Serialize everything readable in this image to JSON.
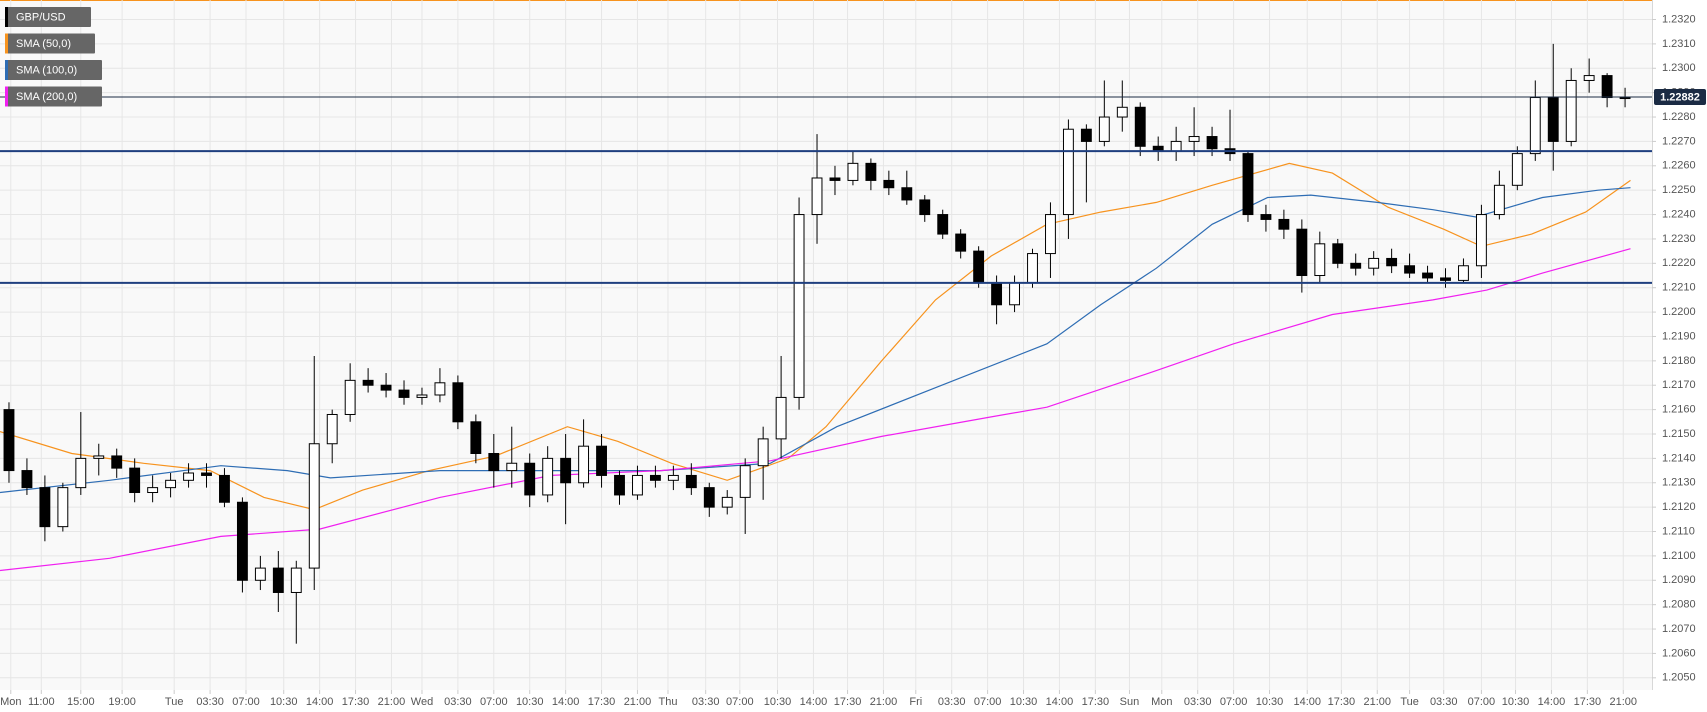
{
  "chart_data": {
    "type": "candlestick",
    "name": "GBP/USD",
    "color_up": "#ffffff",
    "color_down": "#000000",
    "categories": [
      null,
      null,
      null,
      null,
      null,
      null,
      null,
      null,
      null,
      null,
      null,
      null,
      null,
      null,
      null,
      null,
      null,
      null,
      null,
      null,
      null,
      null,
      null,
      null,
      null,
      null,
      null,
      null,
      null,
      null,
      null,
      null,
      null,
      null,
      null,
      null,
      null,
      null,
      null,
      null,
      null,
      null,
      null,
      null,
      null,
      null,
      null,
      null,
      null,
      null,
      null,
      null,
      null,
      null,
      null,
      null,
      null,
      null,
      null,
      null,
      null,
      null,
      null,
      null,
      null,
      null,
      null,
      null,
      null,
      null,
      null,
      null,
      null,
      null,
      null,
      null,
      null,
      null,
      null,
      null,
      null,
      null,
      null,
      null,
      null,
      null,
      null,
      null,
      null,
      null,
      null
    ],
    "open": [
      1.216,
      1.2135,
      1.2128,
      1.2112,
      1.2128,
      1.214,
      1.2141,
      1.2136,
      1.2126,
      1.2128,
      1.2131,
      1.2134,
      1.2133,
      1.2122,
      1.209,
      1.2095,
      1.2085,
      1.2095,
      1.2146,
      1.2158,
      1.2172,
      1.217,
      1.2168,
      1.2165,
      1.2166,
      1.2171,
      1.2155,
      1.2142,
      1.2135,
      1.2138,
      1.2125,
      1.214,
      1.213,
      1.2145,
      1.2133,
      1.2125,
      1.2133,
      1.2131,
      1.2133,
      1.2128,
      1.212,
      1.2124,
      1.2137,
      1.2148,
      1.2165,
      1.224,
      1.2255,
      1.2254,
      1.2261,
      1.2254,
      1.2251,
      1.2246,
      1.224,
      1.2232,
      1.2225,
      1.2212,
      1.2203,
      1.2212,
      1.2224,
      1.224,
      1.2275,
      1.227,
      1.228,
      1.2284,
      1.2268,
      1.2266,
      1.227,
      1.2272,
      1.2267,
      1.2265,
      1.224,
      1.2238,
      1.2234,
      1.2215,
      1.2228,
      1.222,
      1.2218,
      1.2222,
      1.2219,
      1.2216,
      1.2214,
      1.2213,
      1.2219,
      1.224,
      1.2252,
      1.2265,
      1.2288,
      1.227,
      1.2295,
      1.2297,
      1.2288
    ],
    "high": [
      1.2163,
      1.214,
      1.2133,
      1.213,
      1.2159,
      1.2146,
      1.2144,
      1.214,
      1.2133,
      1.2134,
      1.2138,
      1.2138,
      1.2136,
      1.2124,
      1.21,
      1.2102,
      1.2098,
      1.2182,
      1.216,
      1.2179,
      1.2177,
      1.2175,
      1.2172,
      1.2169,
      1.2177,
      1.2174,
      1.2158,
      1.215,
      1.2153,
      1.2142,
      1.2145,
      1.215,
      1.2156,
      1.215,
      1.2135,
      1.2137,
      1.2137,
      1.2137,
      1.2138,
      1.213,
      1.2127,
      1.214,
      1.2153,
      1.2182,
      1.2247,
      1.2273,
      1.226,
      1.2266,
      1.2263,
      1.2258,
      1.2258,
      1.2248,
      1.2242,
      1.2234,
      1.2227,
      1.2215,
      1.2215,
      1.2226,
      1.2245,
      1.2279,
      1.2277,
      1.2295,
      1.2295,
      1.2286,
      1.2272,
      1.2276,
      1.2284,
      1.2276,
      1.2283,
      1.2266,
      1.2244,
      1.2242,
      1.2238,
      1.2233,
      1.223,
      1.2224,
      1.2225,
      1.2226,
      1.2224,
      1.2219,
      1.2218,
      1.2222,
      1.2244,
      1.2258,
      1.2268,
      1.2295,
      1.231,
      1.23,
      1.2304,
      1.2298,
      1.2292
    ],
    "low": [
      1.213,
      1.2125,
      1.2106,
      1.211,
      1.2125,
      1.2133,
      1.2132,
      1.2122,
      1.2122,
      1.2124,
      1.2128,
      1.2128,
      1.212,
      1.2085,
      1.2086,
      1.2077,
      1.2064,
      1.2086,
      1.2138,
      1.2155,
      1.2167,
      1.2165,
      1.2162,
      1.2162,
      1.2163,
      1.2152,
      1.2138,
      1.2128,
      1.2128,
      1.212,
      1.2122,
      1.2113,
      1.2128,
      1.2128,
      1.2121,
      1.2123,
      1.2128,
      1.2127,
      1.2125,
      1.2116,
      1.2117,
      1.2109,
      1.2123,
      1.214,
      1.216,
      1.2228,
      1.2248,
      1.2252,
      1.225,
      1.2248,
      1.2244,
      1.2237,
      1.223,
      1.2222,
      1.221,
      1.2195,
      1.22,
      1.221,
      1.2214,
      1.223,
      1.2245,
      1.2268,
      1.2274,
      1.2264,
      1.2262,
      1.2262,
      1.2264,
      1.2264,
      1.2262,
      1.2237,
      1.2233,
      1.223,
      1.2208,
      1.2212,
      1.2218,
      1.2215,
      1.2215,
      1.2216,
      1.2214,
      1.2212,
      1.221,
      1.2212,
      1.2214,
      1.2238,
      1.225,
      1.2262,
      1.2258,
      1.2268,
      1.229,
      1.2284,
      1.2284
    ],
    "close": [
      1.2135,
      1.2128,
      1.2112,
      1.2128,
      1.214,
      1.2141,
      1.2136,
      1.2126,
      1.2128,
      1.2131,
      1.2134,
      1.2133,
      1.2122,
      1.209,
      1.2095,
      1.2085,
      1.2095,
      1.2146,
      1.2158,
      1.2172,
      1.217,
      1.2168,
      1.2165,
      1.2166,
      1.2171,
      1.2155,
      1.2142,
      1.2135,
      1.2138,
      1.2125,
      1.214,
      1.213,
      1.2145,
      1.2133,
      1.2125,
      1.2133,
      1.2131,
      1.2133,
      1.2128,
      1.212,
      1.2124,
      1.2137,
      1.2148,
      1.2165,
      1.224,
      1.2255,
      1.2254,
      1.2261,
      1.2254,
      1.2251,
      1.2246,
      1.224,
      1.2232,
      1.2225,
      1.2212,
      1.2203,
      1.2212,
      1.2224,
      1.224,
      1.2275,
      1.227,
      1.228,
      1.2284,
      1.2268,
      1.2266,
      1.227,
      1.2272,
      1.2267,
      1.2265,
      1.224,
      1.2238,
      1.2234,
      1.2215,
      1.2228,
      1.222,
      1.2218,
      1.2222,
      1.2219,
      1.2216,
      1.2214,
      1.2213,
      1.2219,
      1.224,
      1.2252,
      1.2265,
      1.2288,
      1.227,
      1.2295,
      1.2297,
      1.2288,
      1.2288
    ],
    "overlays": [
      {
        "name": "SMA (50,0)",
        "color": "#f7931e",
        "x": [
          0,
          4.0,
          8.0,
          11.7,
          14.7,
          17.5,
          20.2,
          23.9,
          27.6,
          31.6,
          34.4,
          37.4,
          40.5,
          43.9,
          46.0,
          49.1,
          52.1,
          55.2,
          58.3,
          61.3,
          64.4,
          67.5,
          71.8,
          74.2,
          77.3,
          80.4,
          82.5,
          85.3,
          88.3,
          90.8
        ],
        "values": [
          1.2151,
          1.2142,
          1.2138,
          1.2135,
          1.2124,
          1.2119,
          1.2127,
          1.2135,
          1.2141,
          1.2153,
          1.2147,
          1.2138,
          1.2131,
          1.214,
          1.2153,
          1.218,
          1.2205,
          1.2223,
          1.2236,
          1.2241,
          1.2245,
          1.2252,
          1.2261,
          1.2257,
          1.2243,
          1.2234,
          1.2227,
          1.2232,
          1.2241,
          1.2254
        ]
      },
      {
        "name": "SMA (100,0)",
        "color": "#2e6db4",
        "x": [
          0,
          6.1,
          12.3,
          16.0,
          18.4,
          24.5,
          30.7,
          36.8,
          42.9,
          46.6,
          52.1,
          58.3,
          61.3,
          64.4,
          67.5,
          70.6,
          73.0,
          76.7,
          79.8,
          82.2,
          85.9,
          89.0,
          90.8
        ],
        "values": [
          1.2126,
          1.2131,
          1.2137,
          1.2135,
          1.2132,
          1.2135,
          1.2135,
          1.2135,
          1.2138,
          1.2153,
          1.2169,
          1.2187,
          1.2203,
          1.2218,
          1.2236,
          1.2247,
          1.2248,
          1.2245,
          1.2242,
          1.2239,
          1.2247,
          1.225,
          1.2251
        ]
      },
      {
        "name": "SMA (200,0)",
        "color": "#f020f0",
        "x": [
          0,
          6.1,
          12.3,
          17.8,
          24.5,
          30.7,
          36.8,
          42.9,
          49.1,
          55.2,
          58.3,
          64.4,
          68.7,
          74.2,
          79.8,
          82.8,
          85.9,
          90.8
        ],
        "values": [
          1.2094,
          1.2099,
          1.2108,
          1.2111,
          1.2124,
          1.2133,
          1.2135,
          1.2139,
          1.2149,
          1.2157,
          1.2161,
          1.2176,
          1.2187,
          1.2199,
          1.2205,
          1.2209,
          1.2216,
          1.2226
        ]
      }
    ],
    "hlines": [
      {
        "value": 1.2266,
        "color": "#1f3f7f"
      },
      {
        "value": 1.2212,
        "color": "#1f3f7f"
      }
    ],
    "last_price": 1.22882,
    "xlim": [
      0,
      92
    ],
    "ylim": [
      1.2045,
      1.2328
    ],
    "xticks": [
      {
        "value": 0.6,
        "label": "Mon"
      },
      {
        "value": 2.3,
        "label": "11:00"
      },
      {
        "value": 4.5,
        "label": "15:00"
      },
      {
        "value": 6.8,
        "label": "19:00"
      },
      {
        "value": 9.7,
        "label": "Tue"
      },
      {
        "value": 11.7,
        "label": "03:30"
      },
      {
        "value": 13.7,
        "label": "07:00"
      },
      {
        "value": 15.8,
        "label": "10:30"
      },
      {
        "value": 17.8,
        "label": "14:00"
      },
      {
        "value": 19.8,
        "label": "17:30"
      },
      {
        "value": 21.8,
        "label": "21:00"
      },
      {
        "value": 23.5,
        "label": "Wed"
      },
      {
        "value": 25.5,
        "label": "03:30"
      },
      {
        "value": 27.5,
        "label": "07:00"
      },
      {
        "value": 29.5,
        "label": "10:30"
      },
      {
        "value": 31.5,
        "label": "14:00"
      },
      {
        "value": 33.5,
        "label": "17:30"
      },
      {
        "value": 35.5,
        "label": "21:00"
      },
      {
        "value": 37.2,
        "label": "Thu"
      },
      {
        "value": 39.3,
        "label": "03:30"
      },
      {
        "value": 41.2,
        "label": "07:00"
      },
      {
        "value": 43.3,
        "label": "10:30"
      },
      {
        "value": 45.3,
        "label": "14:00"
      },
      {
        "value": 47.2,
        "label": "17:30"
      },
      {
        "value": 49.2,
        "label": "21:00"
      },
      {
        "value": 51.0,
        "label": "Fri"
      },
      {
        "value": 53.0,
        "label": "03:30"
      },
      {
        "value": 55.0,
        "label": "07:00"
      },
      {
        "value": 57.0,
        "label": "10:30"
      },
      {
        "value": 59.0,
        "label": "14:00"
      },
      {
        "value": 61.0,
        "label": "17:30"
      },
      {
        "value": 62.9,
        "label": "Sun"
      },
      {
        "value": 64.7,
        "label": "Mon"
      },
      {
        "value": 66.7,
        "label": "03:30"
      },
      {
        "value": 68.7,
        "label": "07:00"
      },
      {
        "value": 70.7,
        "label": "10:30"
      },
      {
        "value": 72.8,
        "label": "14:00"
      },
      {
        "value": 74.7,
        "label": "17:30"
      },
      {
        "value": 76.7,
        "label": "21:00"
      },
      {
        "value": 78.5,
        "label": "Tue"
      },
      {
        "value": 80.4,
        "label": "03:30"
      },
      {
        "value": 82.5,
        "label": "07:00"
      },
      {
        "value": 84.4,
        "label": "10:30"
      },
      {
        "value": 86.4,
        "label": "14:00"
      },
      {
        "value": 88.4,
        "label": "17:30"
      },
      {
        "value": 90.4,
        "label": "21:00"
      }
    ],
    "yticks": [
      {
        "value": 1.205,
        "label": "1.2050"
      },
      {
        "value": 1.206,
        "label": "1.2060"
      },
      {
        "value": 1.207,
        "label": "1.2070"
      },
      {
        "value": 1.208,
        "label": "1.2080"
      },
      {
        "value": 1.209,
        "label": "1.2090"
      },
      {
        "value": 1.21,
        "label": "1.2100"
      },
      {
        "value": 1.211,
        "label": "1.2110"
      },
      {
        "value": 1.212,
        "label": "1.2120"
      },
      {
        "value": 1.213,
        "label": "1.2130"
      },
      {
        "value": 1.214,
        "label": "1.2140"
      },
      {
        "value": 1.215,
        "label": "1.2150"
      },
      {
        "value": 1.216,
        "label": "1.2160"
      },
      {
        "value": 1.217,
        "label": "1.2170"
      },
      {
        "value": 1.218,
        "label": "1.2180"
      },
      {
        "value": 1.219,
        "label": "1.2190"
      },
      {
        "value": 1.22,
        "label": "1.2200"
      },
      {
        "value": 1.221,
        "label": "1.2210"
      },
      {
        "value": 1.222,
        "label": "1.2220"
      },
      {
        "value": 1.223,
        "label": "1.2230"
      },
      {
        "value": 1.224,
        "label": "1.2240"
      },
      {
        "value": 1.225,
        "label": "1.2250"
      },
      {
        "value": 1.226,
        "label": "1.2260"
      },
      {
        "value": 1.227,
        "label": "1.2270"
      },
      {
        "value": 1.228,
        "label": "1.2280"
      },
      {
        "value": 1.229,
        "label": "1.2290"
      },
      {
        "value": 1.23,
        "label": "1.2300"
      },
      {
        "value": 1.231,
        "label": "1.2310"
      },
      {
        "value": 1.232,
        "label": "1.2320"
      }
    ],
    "grid": true
  }
}
